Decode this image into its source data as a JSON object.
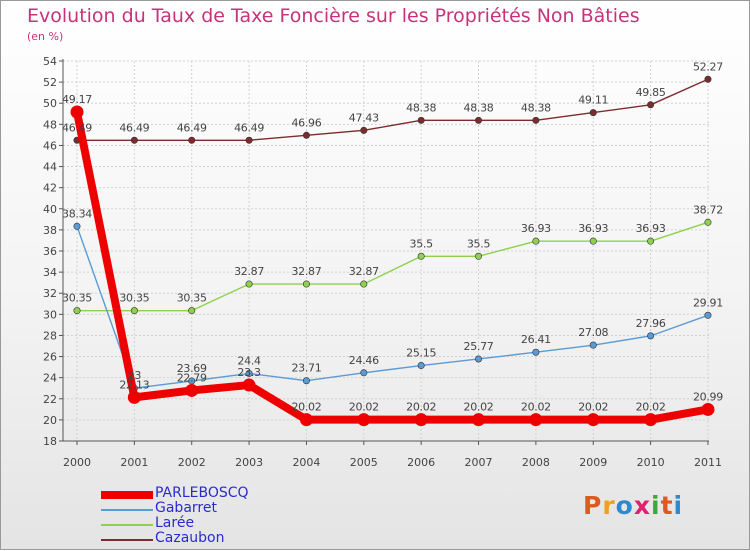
{
  "header": {
    "title": "Evolution du Taux de Taxe Foncière sur les Propriétés Non Bâties",
    "subtitle": "(en %)"
  },
  "logo": {
    "text": "Proxiti",
    "letter_colors": [
      "#e05a1e",
      "#f0a020",
      "#2d8ad0",
      "#e02070",
      "#3aaa3a",
      "#e05a1e",
      "#2d8ad0"
    ]
  },
  "chart_data": {
    "type": "line",
    "categories": [
      "2000",
      "2001",
      "2002",
      "2003",
      "2004",
      "2005",
      "2006",
      "2007",
      "2008",
      "2009",
      "2010",
      "2011"
    ],
    "ylim": [
      18,
      54
    ],
    "yticks": [
      "18",
      "20",
      "22",
      "24",
      "26",
      "28",
      "30",
      "32",
      "34",
      "36",
      "38",
      "40",
      "42",
      "44",
      "46",
      "48",
      "50",
      "52",
      "54"
    ],
    "grid": true,
    "legend_position": "bottom-left",
    "series": [
      {
        "name": "PARLEBOSCQ",
        "color": "#ee0000",
        "values": [
          49.17,
          22.13,
          22.79,
          23.3,
          20.02,
          20.02,
          20.02,
          20.02,
          20.02,
          20.02,
          20.02,
          20.99
        ],
        "labels": [
          "49.17",
          "22.13",
          "22.79",
          "23.3",
          "20.02",
          "20.02",
          "20.02",
          "20.02",
          "20.02",
          "20.02",
          "20.02",
          "20.99"
        ]
      },
      {
        "name": "Gabarret",
        "color": "#5b9bd5",
        "values": [
          38.34,
          23.0,
          23.69,
          24.4,
          23.71,
          24.46,
          25.15,
          25.77,
          26.41,
          27.08,
          27.96,
          29.91
        ],
        "labels": [
          "38.34",
          "23",
          "23.69",
          "24.4",
          "23.71",
          "24.46",
          "25.15",
          "25.77",
          "26.41",
          "27.08",
          "27.96",
          "29.91"
        ]
      },
      {
        "name": "Larée",
        "color": "#8fd14f",
        "values": [
          30.35,
          30.35,
          30.35,
          32.87,
          32.87,
          32.87,
          35.5,
          35.5,
          36.93,
          36.93,
          36.93,
          38.72
        ],
        "labels": [
          "30.35",
          "30.35",
          "30.35",
          "32.87",
          "32.87",
          "32.87",
          "35.5",
          "35.5",
          "36.93",
          "36.93",
          "36.93",
          "38.72"
        ]
      },
      {
        "name": "Cazaubon",
        "color": "#7b2d2d",
        "values": [
          46.49,
          46.49,
          46.49,
          46.49,
          46.96,
          47.43,
          48.38,
          48.38,
          48.38,
          49.11,
          49.85,
          52.27
        ],
        "labels": [
          "46.49",
          "46.49",
          "46.49",
          "46.49",
          "46.96",
          "47.43",
          "48.38",
          "48.38",
          "48.38",
          "49.11",
          "49.85",
          "52.27"
        ]
      }
    ]
  }
}
